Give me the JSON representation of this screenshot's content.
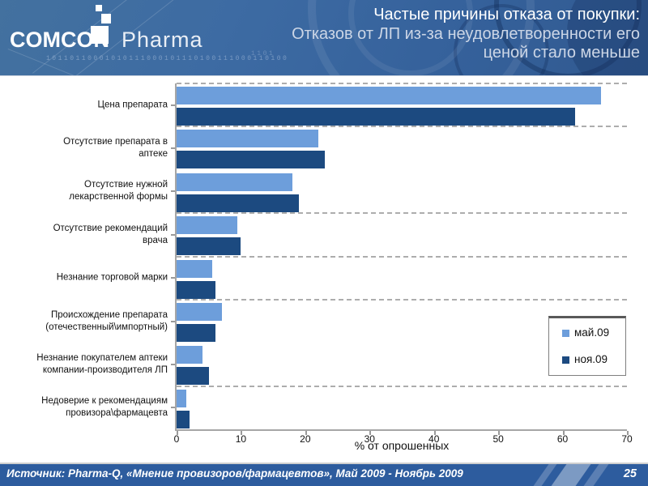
{
  "header": {
    "logo": {
      "comcon": "COMCON",
      "pharma": "Pharma",
      "binary": "10110110001010111000101110100111000110100",
      "binary2": "1101"
    },
    "title_line1": "Частые причины отказа от покупки:",
    "title_line2": "Отказов от ЛП из-за неудовлетворенности его",
    "title_line3": "ценой стало меньше"
  },
  "chart_data": {
    "type": "bar",
    "orientation": "horizontal",
    "title": "",
    "xlabel": "% от опрошенных",
    "ylabel": "",
    "xlim": [
      0,
      70
    ],
    "xticks": [
      0,
      10,
      20,
      30,
      40,
      50,
      60,
      70
    ],
    "grid": "dashed category separators",
    "gridline_boundaries": [
      0,
      1,
      3,
      4,
      5,
      7
    ],
    "legend_position": "right-middle",
    "categories": [
      "Цена препарата",
      "Отсутствие препарата в\nаптеке",
      "Отсутствие нужной\nлекарственной формы",
      "Отсутствие рекомендаций\nврача",
      "Незнание торговой марки",
      "Происхождение препарата\n(отечественный\\импортный)",
      "Незнание покупателем аптеки\nкомпании-производителя ЛП",
      "Недоверие к рекомендациям\nпровизора\\фармацевта"
    ],
    "series": [
      {
        "name": "май.09",
        "color": "#6d9edb",
        "values": [
          66,
          22,
          18,
          9.5,
          5.5,
          7,
          4,
          1.5
        ]
      },
      {
        "name": "ноя.09",
        "color": "#1c4a80",
        "values": [
          62,
          23,
          19,
          10,
          6,
          6,
          5,
          2
        ]
      }
    ]
  },
  "footer": {
    "source": "Источник: Pharma-Q, «Мнение провизоров/фармацевтов», Май 2009 -  Ноябрь 2009",
    "page": "25"
  },
  "colors": {
    "header_bg": "#3d6ba3",
    "footer_bg": "#2d5c9e",
    "series_may": "#6d9edb",
    "series_nov": "#1c4a80",
    "axis_grey": "#a6a6a6"
  }
}
